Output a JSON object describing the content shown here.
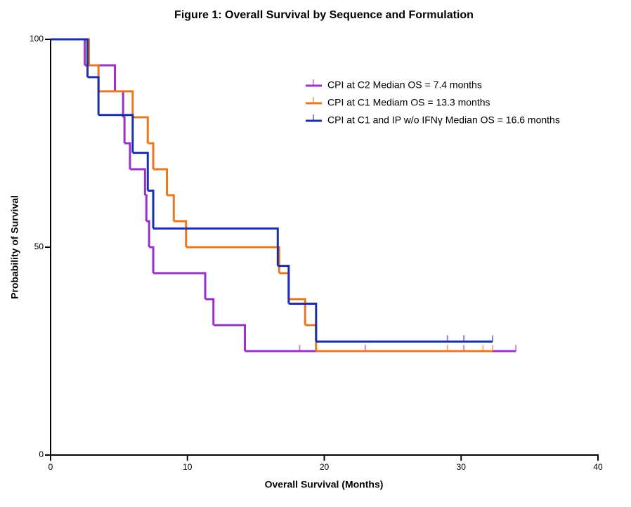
{
  "chart_data": {
    "type": "step",
    "title": "Figure 1: Overall Survival by Sequence and Formulation",
    "xlabel": "Overall Survival (Months)",
    "ylabel": "Probability of Survival",
    "xlim": [
      0,
      40
    ],
    "xticks": [
      0,
      10,
      20,
      30,
      40
    ],
    "ylim": [
      0,
      100
    ],
    "yticks": [
      0,
      50,
      100
    ],
    "series": [
      {
        "name": "CPI at C2 Median  OS = 7.4 months",
        "color": "#9b30c8",
        "x": [
          0,
          2.5,
          4.7,
          5.3,
          5.4,
          5.8,
          6.9,
          7.0,
          7.2,
          7.5,
          11.3,
          11.9,
          14.2,
          34.0
        ],
        "values": [
          100,
          93.75,
          87.5,
          81.25,
          75,
          68.75,
          62.5,
          56.25,
          50,
          43.75,
          37.5,
          31.25,
          25,
          25
        ],
        "censor_x": [
          18.2,
          23.0,
          30.2,
          34.0
        ],
        "censor_values": [
          25,
          25,
          25,
          25
        ]
      },
      {
        "name": "CPI at C1 Mediam OS = 13.3 months",
        "color": "#e87722",
        "x": [
          0,
          2.8,
          3.5,
          6.0,
          7.1,
          7.5,
          8.5,
          9.0,
          9.9,
          16.7,
          17.4,
          18.6,
          19.4,
          32.3
        ],
        "values": [
          100,
          93.75,
          87.5,
          81.25,
          75,
          68.75,
          62.5,
          56.25,
          50,
          43.75,
          37.5,
          31.25,
          25,
          25
        ],
        "censor_x": [
          29.0,
          31.6,
          32.3
        ],
        "censor_values": [
          25,
          25,
          25
        ]
      },
      {
        "name": "CPI at C1 and IP w/o IFNγ Median OS = 16.6 months",
        "color": "#1a2fa8",
        "x": [
          0,
          2.7,
          3.5,
          6.0,
          7.1,
          7.5,
          16.6,
          17.4,
          19.4,
          32.3
        ],
        "values": [
          100,
          90.9,
          81.8,
          72.7,
          63.6,
          54.5,
          45.5,
          36.4,
          27.3,
          27.3
        ],
        "censor_x": [
          29.0,
          30.2,
          32.3
        ],
        "censor_values": [
          27.3,
          27.3,
          27.3
        ]
      }
    ]
  }
}
